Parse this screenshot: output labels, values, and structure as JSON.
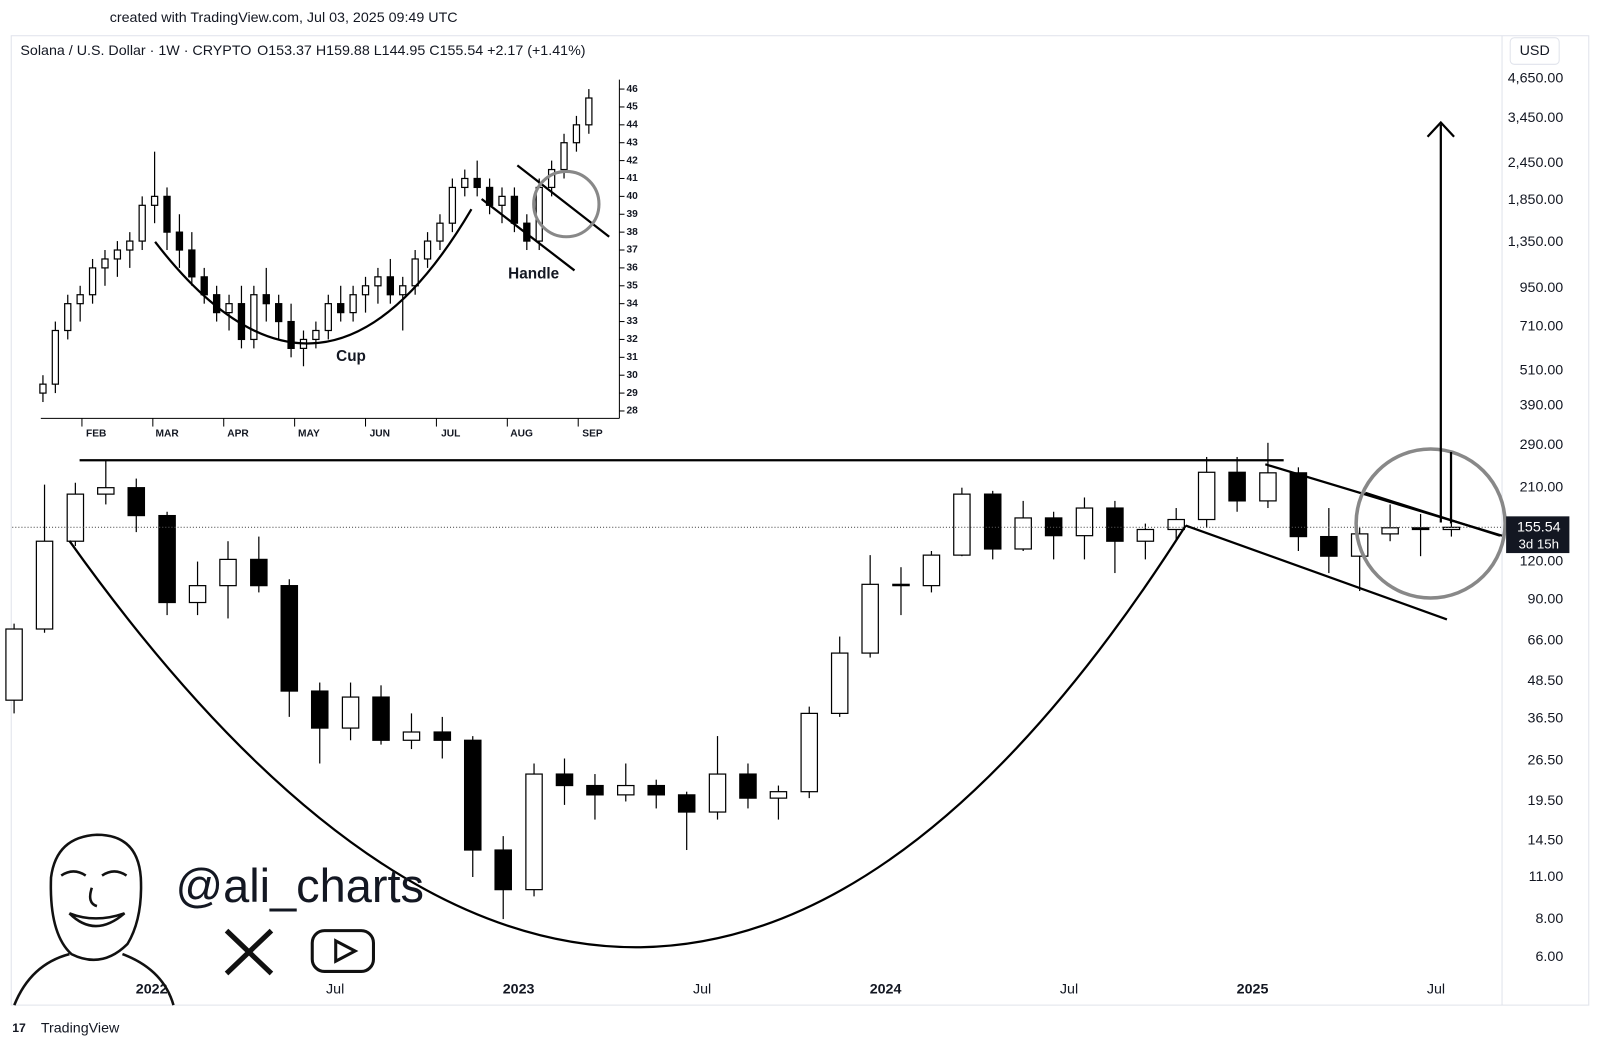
{
  "header": {
    "created": "created with TradingView.com, Jul 03, 2025 09:49 UTC",
    "symbol": "Solana / U.S. Dollar · 1W · CRYPTO",
    "ohlc": "O153.37  H159.88  L144.95  C155.54  +2.17 (+1.41%)",
    "currency": "USD",
    "countdown": "3d 15h",
    "handle": "@ali_charts",
    "brand": "TradingView"
  },
  "chart_data": [
    {
      "type": "candlestick",
      "log_scale": true,
      "up_color": "#ffffff",
      "down_color": "#000000",
      "x": [
        2021.625,
        2021.708,
        2021.792,
        2021.875,
        2021.958,
        2022.042,
        2022.125,
        2022.208,
        2022.292,
        2022.375,
        2022.458,
        2022.542,
        2022.625,
        2022.708,
        2022.792,
        2022.875,
        2022.958,
        2023.042,
        2023.125,
        2023.208,
        2023.292,
        2023.375,
        2023.458,
        2023.542,
        2023.625,
        2023.708,
        2023.792,
        2023.875,
        2023.958,
        2024.042,
        2024.125,
        2024.208,
        2024.292,
        2024.375,
        2024.458,
        2024.542,
        2024.625,
        2024.708,
        2024.792,
        2024.875,
        2024.958,
        2025.042,
        2025.125,
        2025.208,
        2025.292,
        2025.375,
        2025.458,
        2025.542
      ],
      "open": [
        42,
        72,
        140,
        200,
        210,
        170,
        88,
        100,
        122,
        100,
        45,
        34,
        43,
        31,
        33,
        31,
        13.5,
        10,
        24,
        22,
        20.5,
        22,
        20.5,
        18,
        24,
        20,
        21,
        38,
        60,
        101,
        100,
        126,
        200,
        132,
        167,
        146,
        180,
        140,
        153,
        165,
        236,
        190,
        235,
        145,
        125,
        148,
        155,
        153
      ],
      "high": [
        75,
        215,
        218,
        260,
        225,
        175,
        120,
        140,
        145,
        105,
        48,
        48,
        47,
        38,
        37,
        32,
        15,
        26,
        27,
        24,
        26,
        23,
        21,
        32,
        26,
        22,
        40,
        68,
        126,
        115,
        130,
        210,
        205,
        190,
        175,
        195,
        190,
        160,
        180,
        265,
        265,
        295,
        245,
        180,
        155,
        185,
        172,
        160
      ],
      "low": [
        38,
        70,
        135,
        185,
        150,
        80,
        80,
        78,
        95,
        37,
        26,
        31,
        30,
        29,
        27,
        11,
        8,
        9.5,
        19,
        17,
        19.5,
        18.5,
        13.5,
        17,
        18.5,
        17,
        20,
        37,
        58,
        80,
        95,
        125,
        122,
        130,
        122,
        122,
        110,
        122,
        140,
        155,
        175,
        180,
        130,
        110,
        96,
        140,
        125,
        145
      ],
      "close": [
        72,
        140,
        200,
        210,
        170,
        88,
        100,
        122,
        100,
        45,
        34,
        43,
        31,
        33,
        31,
        13.5,
        10,
        24,
        22,
        20.5,
        22,
        20.5,
        18,
        24,
        20,
        21,
        38,
        60,
        101,
        100,
        126,
        200,
        132,
        167,
        146,
        180,
        140,
        153,
        165,
        236,
        190,
        235,
        145,
        125,
        148,
        155,
        153,
        155.54
      ],
      "xlim": [
        2021.62,
        2025.68
      ],
      "ylim": [
        4.17,
        6440
      ],
      "xticks": [
        2022,
        {
          "value": 2022.5,
          "label": "Jul"
        },
        2023,
        {
          "value": 2023.5,
          "label": "Jul"
        },
        2024,
        {
          "value": 2024.5,
          "label": "Jul"
        },
        2025,
        {
          "value": 2025.5,
          "label": "Jul"
        }
      ],
      "yticks": [
        {
          "value": 6,
          "label": "6.00"
        },
        {
          "value": 8,
          "label": "8.00"
        },
        {
          "value": 11,
          "label": "11.00"
        },
        {
          "value": 14.5,
          "label": "14.50"
        },
        {
          "value": 19.5,
          "label": "19.50"
        },
        {
          "value": 26.5,
          "label": "26.50"
        },
        {
          "value": 36.5,
          "label": "36.50"
        },
        {
          "value": 48.5,
          "label": "48.50"
        },
        {
          "value": 66,
          "label": "66.00"
        },
        {
          "value": 90,
          "label": "90.00"
        },
        {
          "value": 120,
          "label": "120.00"
        },
        {
          "value": 210,
          "label": "210.00"
        },
        {
          "value": 290,
          "label": "290.00"
        },
        {
          "value": 390,
          "label": "390.00"
        },
        {
          "value": 510,
          "label": "510.00"
        },
        {
          "value": 710,
          "label": "710.00"
        },
        {
          "value": 950,
          "label": "950.00"
        },
        {
          "value": 1350,
          "label": "1,350.00"
        },
        {
          "value": 1850,
          "label": "1,850.00"
        },
        {
          "value": 2450,
          "label": "2,450.00"
        },
        {
          "value": 3450,
          "label": "3,450.00"
        },
        {
          "value": 4650,
          "label": "4,650.00"
        }
      ]
    },
    {
      "type": "candlestick",
      "log_scale": false,
      "up_color": "#ffffff",
      "down_color": "#000000",
      "annotations": [
        "Cup",
        "Handle"
      ],
      "x": [
        1.45,
        1.625,
        1.8,
        1.975,
        2.15,
        2.325,
        2.5,
        2.675,
        2.85,
        3.025,
        3.2,
        3.375,
        3.55,
        3.725,
        3.9,
        4.075,
        4.25,
        4.425,
        4.6,
        4.775,
        4.95,
        5.125,
        5.3,
        5.475,
        5.65,
        5.825,
        6.0,
        6.175,
        6.35,
        6.525,
        6.7,
        6.875,
        7.05,
        7.225,
        7.4,
        7.575,
        7.75,
        7.925,
        8.1,
        8.275,
        8.45,
        8.625,
        8.8,
        8.975,
        9.15
      ],
      "open": [
        29,
        29.5,
        32.5,
        34,
        34.5,
        36,
        36.5,
        37,
        37.5,
        39.5,
        40,
        38,
        37,
        35.5,
        34.5,
        33.5,
        34,
        32,
        34.5,
        34,
        33,
        31.5,
        32,
        32.5,
        34,
        33.5,
        34.5,
        35,
        35.5,
        34.5,
        35,
        36.5,
        37.5,
        38.5,
        40.5,
        41,
        40.5,
        39.5,
        40,
        38.5,
        37.5,
        40.5,
        41.5,
        43,
        44
      ],
      "high": [
        30,
        33,
        34.5,
        35,
        36.5,
        37,
        37.5,
        38,
        40,
        42.5,
        40.5,
        39,
        38,
        36,
        35,
        34.5,
        35,
        35,
        36,
        34.5,
        34,
        32.5,
        33,
        34.5,
        35,
        35,
        35.5,
        36,
        36.5,
        35.5,
        37,
        38,
        39,
        41,
        41.5,
        42,
        41,
        40.5,
        40.5,
        39,
        41,
        42,
        43.5,
        44.5,
        46
      ],
      "low": [
        28.5,
        29,
        32,
        33,
        34,
        35,
        35.5,
        36,
        37,
        38.5,
        37,
        36,
        35,
        34,
        33,
        32.5,
        31.5,
        31.5,
        33,
        32,
        31,
        30.5,
        31.5,
        32,
        33,
        33,
        33.5,
        34,
        34,
        32.5,
        34.5,
        36,
        37,
        38,
        40,
        40,
        39,
        38.5,
        38,
        37,
        37,
        40,
        41,
        42.5,
        43.5
      ],
      "close": [
        29.5,
        32.5,
        34,
        34.5,
        36,
        36.5,
        37,
        37.5,
        39.5,
        40,
        38,
        37,
        35.5,
        34.5,
        33.5,
        34,
        32,
        34.5,
        34,
        33,
        31.5,
        32,
        32.5,
        34,
        33.5,
        34.5,
        35,
        35.5,
        34.5,
        35,
        36.5,
        37.5,
        38.5,
        40.5,
        41,
        40.5,
        39.5,
        40,
        38.5,
        37.5,
        40.5,
        41.5,
        43,
        44,
        45.5
      ],
      "xlim": [
        1.42,
        9.48
      ],
      "ylim": [
        27.3,
        46.7
      ],
      "xticks": [
        {
          "value": 2,
          "label": "FEB"
        },
        {
          "value": 3,
          "label": "MAR"
        },
        {
          "value": 4,
          "label": "APR"
        },
        {
          "value": 5,
          "label": "MAY"
        },
        {
          "value": 6,
          "label": "JUN"
        },
        {
          "value": 7,
          "label": "JUL"
        },
        {
          "value": 8,
          "label": "AUG"
        },
        {
          "value": 9,
          "label": "SEP"
        }
      ],
      "yticks": [
        28,
        29,
        30,
        31,
        32,
        33,
        34,
        35,
        36,
        37,
        38,
        39,
        40,
        41,
        42,
        43,
        44,
        45,
        46
      ]
    }
  ]
}
